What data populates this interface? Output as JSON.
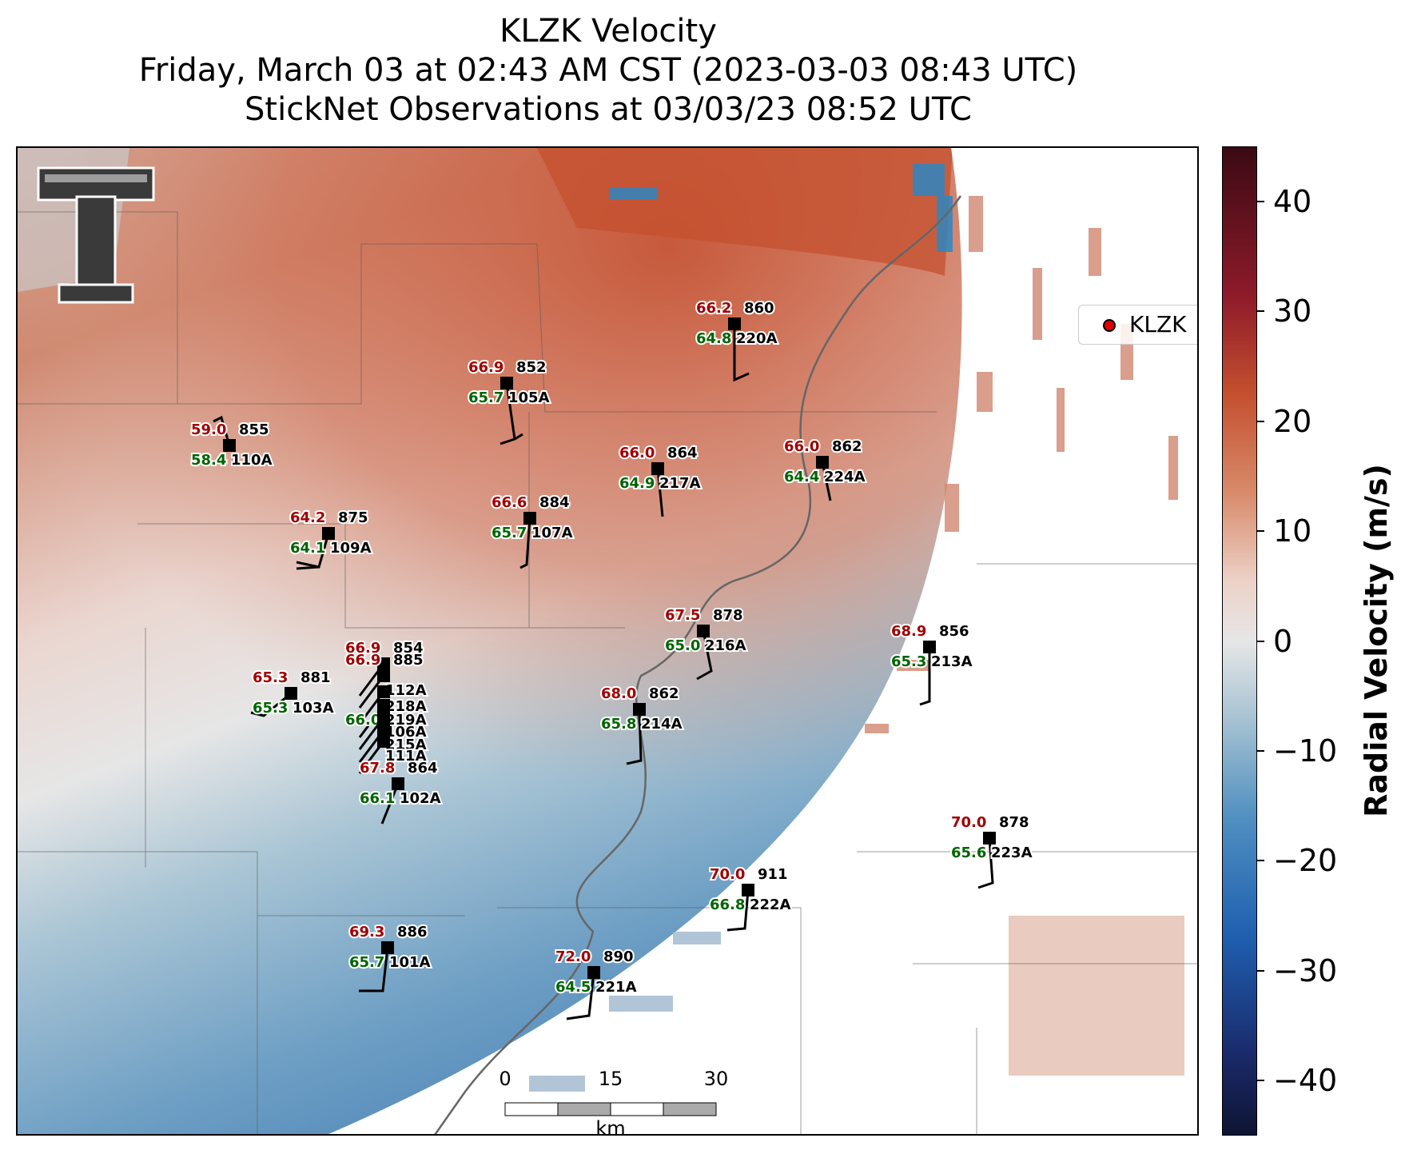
{
  "title": {
    "line1": "KLZK Velocity",
    "line2": "Friday, March 03 at 02:43 AM CST (2023-03-03 08:43 UTC)",
    "line3": "StickNet Observations at 03/03/23 08:52 UTC"
  },
  "legend": {
    "label": "KLZK"
  },
  "colorbar": {
    "label": "Radial Velocity (m/s)",
    "ticks": [
      "40",
      "30",
      "20",
      "10",
      "0",
      "−10",
      "−20",
      "−30",
      "−40"
    ],
    "range": [
      -45,
      45
    ]
  },
  "scalebar": {
    "ticks": [
      "0",
      "15",
      "30"
    ],
    "unit": "km"
  },
  "colors": {
    "temp": "#a00000",
    "dewpoint": "#006400",
    "outbound": "#c8553d",
    "inbound": "#2e86c1",
    "zero": "#e8e8e8"
  },
  "stations": [
    {
      "id": "860",
      "temp": "66.2",
      "dewpoint": "64.8",
      "sensor": "220A"
    },
    {
      "id": "852",
      "temp": "66.9",
      "dewpoint": "65.7",
      "sensor": "105A"
    },
    {
      "id": "855",
      "temp": "59.0",
      "dewpoint": "58.4",
      "sensor": "110A"
    },
    {
      "id": "864",
      "temp": "66.0",
      "dewpoint": "64.9",
      "sensor": "217A"
    },
    {
      "id": "862",
      "temp": "66.0",
      "dewpoint": "64.4",
      "sensor": "224A"
    },
    {
      "id": "875",
      "temp": "64.2",
      "dewpoint": "64.1",
      "sensor": "109A"
    },
    {
      "id": "884",
      "temp": "66.6",
      "dewpoint": "65.7",
      "sensor": "107A"
    },
    {
      "id": "878",
      "temp": "67.5",
      "dewpoint": "65.0",
      "sensor": "216A"
    },
    {
      "id": "856",
      "temp": "68.9",
      "dewpoint": "65.3",
      "sensor": "213A"
    },
    {
      "id": "854",
      "temp": "66.9",
      "dewpoint": "",
      "sensor": ""
    },
    {
      "id": "885",
      "temp": "66.9",
      "dewpoint": "",
      "sensor": "112A"
    },
    {
      "id": "",
      "temp": "",
      "dewpoint": "",
      "sensor": "218A"
    },
    {
      "id": "",
      "temp": "",
      "dewpoint": "66.0",
      "sensor": "219A"
    },
    {
      "id": "",
      "temp": "",
      "dewpoint": "",
      "sensor": "106A"
    },
    {
      "id": "",
      "temp": "",
      "dewpoint": "",
      "sensor": "215A"
    },
    {
      "id": "",
      "temp": "",
      "dewpoint": "",
      "sensor": "111A"
    },
    {
      "id": "881",
      "temp": "65.3",
      "dewpoint": "65.3",
      "sensor": "103A"
    },
    {
      "id": "862",
      "temp": "68.0",
      "dewpoint": "65.8",
      "sensor": "214A"
    },
    {
      "id": "864",
      "temp": "67.8",
      "dewpoint": "66.1",
      "sensor": "102A"
    },
    {
      "id": "878",
      "temp": "70.0",
      "dewpoint": "65.6",
      "sensor": "223A"
    },
    {
      "id": "911",
      "temp": "70.0",
      "dewpoint": "66.8",
      "sensor": "222A"
    },
    {
      "id": "886",
      "temp": "69.3",
      "dewpoint": "65.7",
      "sensor": "101A"
    },
    {
      "id": "890",
      "temp": "72.0",
      "dewpoint": "64.5",
      "sensor": "221A"
    }
  ]
}
